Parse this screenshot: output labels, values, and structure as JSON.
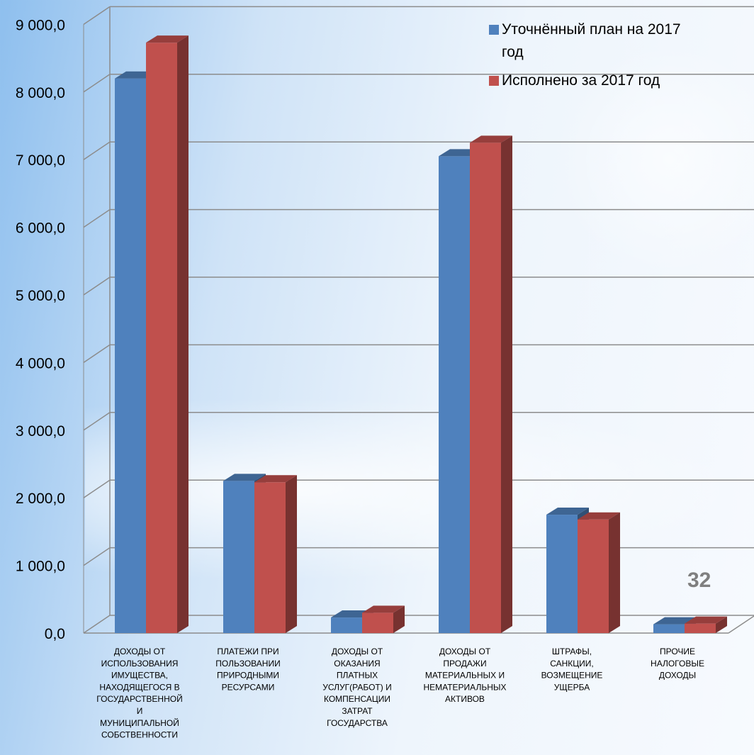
{
  "chart_data": {
    "type": "bar",
    "categories": [
      [
        "ДОХОДЫ ОТ",
        "ИСПОЛЬЗОВАНИЯ",
        "ИМУЩЕСТВА,",
        "НАХОДЯЩЕГОСЯ В",
        "ГОСУДАРСТВЕННОЙ",
        "И",
        "МУНИЦИПАЛЬНОЙ",
        "СОБСТВЕННОСТИ"
      ],
      [
        "ПЛАТЕЖИ ПРИ",
        "ПОЛЬЗОВАНИИ",
        "ПРИРОДНЫМИ",
        "РЕСУРСАМИ"
      ],
      [
        "ДОХОДЫ ОТ",
        "ОКАЗАНИЯ",
        "ПЛАТНЫХ",
        "УСЛУГ(РАБОТ) И",
        "КОМПЕНСАЦИИ",
        "ЗАТРАТ",
        "ГОСУДАРСТВА"
      ],
      [
        "ДОХОДЫ ОТ",
        "ПРОДАЖИ",
        "МАТЕРИАЛЬНЫХ И",
        "НЕМАТЕРИАЛЬНЫХ",
        "АКТИВОВ"
      ],
      [
        "ШТРАФЫ,",
        "САНКЦИИ,",
        "ВОЗМЕЩЕНИЕ",
        "УЩЕРБА"
      ],
      [
        "ПРОЧИЕ",
        "НАЛОГОВЫЕ",
        "ДОХОДЫ"
      ]
    ],
    "series": [
      {
        "name": "Уточнённый план на 2017 год",
        "legend_lines": [
          "Уточнённый план на 2017",
          "год"
        ],
        "color": "#4f81bd",
        "values": [
          8200,
          2250,
          230,
          7050,
          1750,
          130
        ]
      },
      {
        "name": "Исполнено за  2017 год",
        "legend_lines": [
          "Исполнено за  2017 год"
        ],
        "color": "#c0504d",
        "values": [
          8730,
          2230,
          300,
          7250,
          1680,
          140
        ]
      }
    ],
    "ylim": [
      0,
      9000
    ],
    "yticks": [
      "0,0",
      "1 000,0",
      "2 000,0",
      "3 000,0",
      "4 000,0",
      "5 000,0",
      "6 000,0",
      "7 000,0",
      "8 000,0",
      "9 000,0"
    ],
    "grid": true,
    "legend": "top-right",
    "style": "3d-column"
  },
  "page_number": "32"
}
